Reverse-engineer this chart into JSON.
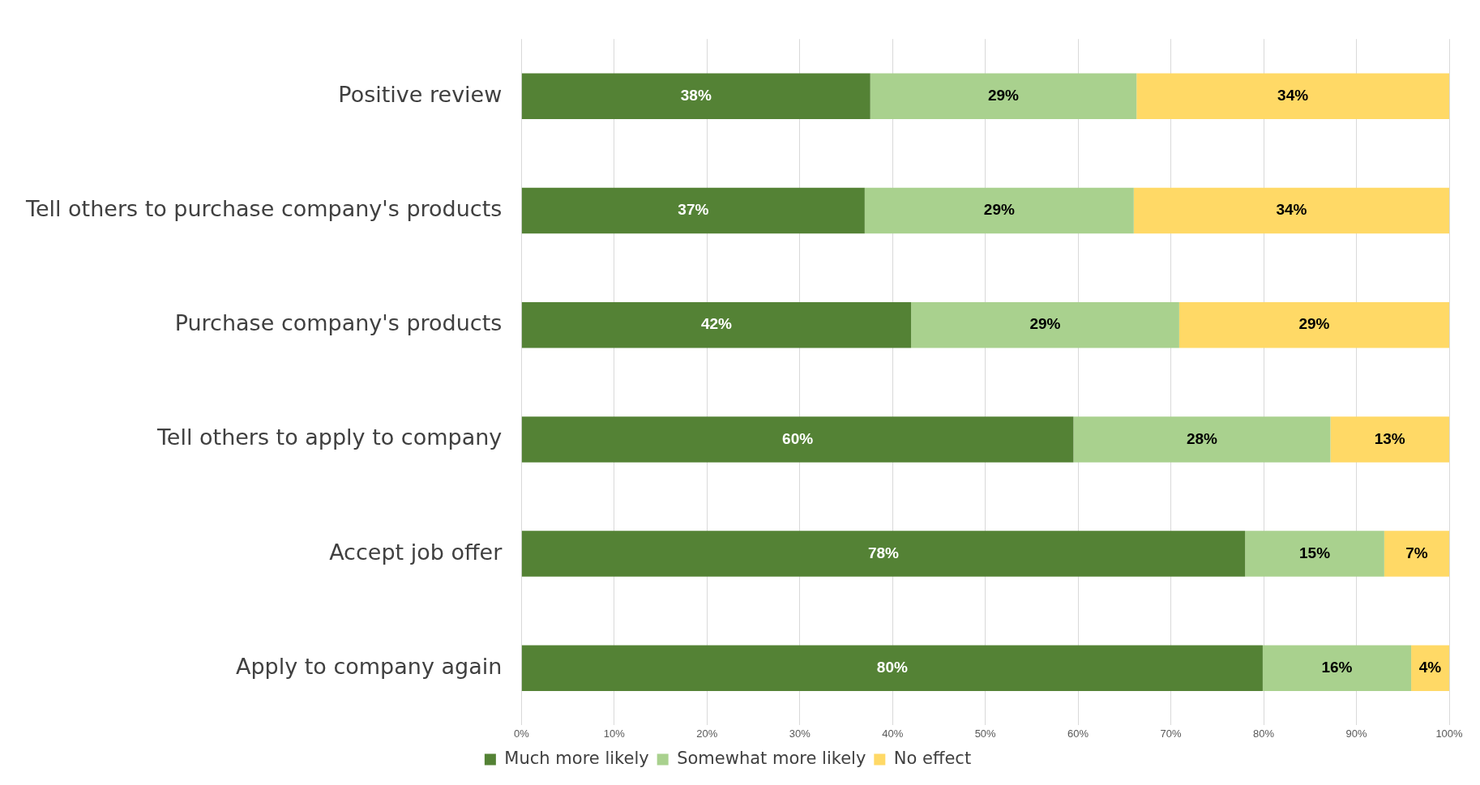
{
  "chart_data": {
    "type": "bar",
    "orientation": "horizontal",
    "stacked": true,
    "categories": [
      "Positive review",
      "Tell others to purchase company's products",
      "Purchase company's products",
      "Tell others to apply to company",
      "Accept job offer",
      "Apply to company again"
    ],
    "series": [
      {
        "name": "Much more likely",
        "color": "#548235",
        "values": [
          37.6,
          37.0,
          42.0,
          59.5,
          78.0,
          79.9
        ],
        "value_labels": [
          "38%",
          "37%",
          "42%",
          "60%",
          "78%",
          "80%"
        ]
      },
      {
        "name": "Somewhat more likely",
        "color": "#a9d18e",
        "values": [
          28.7,
          29.0,
          28.9,
          27.7,
          15.0,
          16.0
        ],
        "value_labels": [
          "29%",
          "29%",
          "29%",
          "28%",
          "15%",
          "16%"
        ]
      },
      {
        "name": "No effect",
        "color": "#ffd966",
        "values": [
          33.7,
          34.0,
          29.1,
          12.8,
          7.0,
          4.1
        ],
        "value_labels": [
          "34%",
          "34%",
          "29%",
          "13%",
          "7%",
          "4%"
        ]
      }
    ],
    "xlim": [
      0,
      100
    ],
    "xticks": [
      {
        "value": 0,
        "label": "0%"
      },
      {
        "value": 10,
        "label": "10%"
      },
      {
        "value": 20,
        "label": "20%"
      },
      {
        "value": 30,
        "label": "30%"
      },
      {
        "value": 40,
        "label": "40%"
      },
      {
        "value": 50,
        "label": "50%"
      },
      {
        "value": 60,
        "label": "60%"
      },
      {
        "value": 70,
        "label": "70%"
      },
      {
        "value": 80,
        "label": "80%"
      },
      {
        "value": 90,
        "label": "90%"
      },
      {
        "value": 100,
        "label": "100%"
      }
    ],
    "grid": "x",
    "legend": "bottom"
  }
}
